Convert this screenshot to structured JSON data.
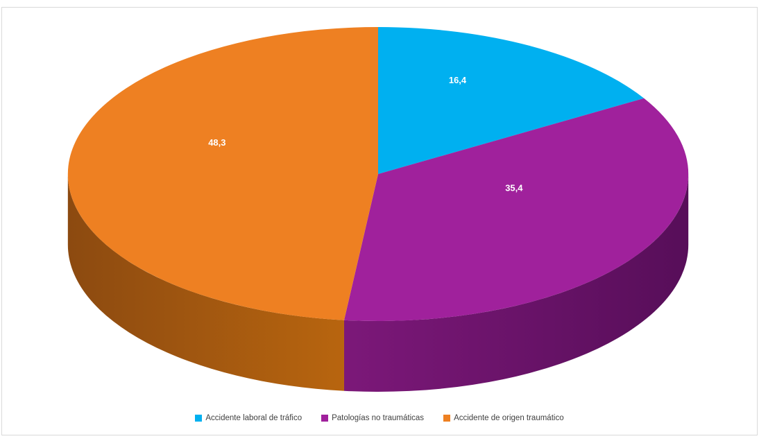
{
  "chart_data": {
    "type": "pie",
    "style": "3d",
    "title": "",
    "categories": [
      "Accidente laboral de tráfico",
      "Patologías no traumáticas",
      "Accidente de origen traumático"
    ],
    "values": [
      16.4,
      35.4,
      48.3
    ],
    "display_labels": [
      "16,4",
      "35,4",
      "48,3"
    ],
    "colors": [
      "#00B0F0",
      "#A0219C",
      "#EE8022"
    ],
    "side_gradients": [
      [
        "#0077A8",
        "#0077A8"
      ],
      [
        "#7C1879",
        "#570E59"
      ],
      [
        "#8C4A10",
        "#B8650F"
      ]
    ],
    "label_color": "#FFFFFF",
    "legend_position": "bottom",
    "start_angle_deg": -90,
    "clockwise": true
  },
  "frame": {
    "border_color": "#D9D9D9",
    "background": "#FFFFFF"
  }
}
